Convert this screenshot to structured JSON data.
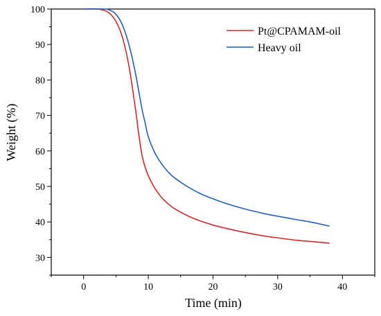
{
  "chart_data": {
    "type": "line",
    "xlabel": "Time (min)",
    "ylabel": "Weight (%)",
    "xlim": [
      -5,
      45
    ],
    "ylim": [
      25,
      100
    ],
    "x_ticks": [
      0,
      10,
      20,
      30,
      40
    ],
    "y_ticks": [
      30,
      40,
      50,
      60,
      70,
      80,
      90,
      100
    ],
    "grid": false,
    "legend_position": "top-right",
    "series": [
      {
        "name": "Pt@CPAMAM-oil",
        "color": "#d62728",
        "x": [
          0,
          2,
          3,
          4,
          5,
          6,
          7,
          8,
          8.5,
          9,
          9.5,
          10,
          11,
          12,
          13,
          14,
          16,
          18,
          20,
          22,
          25,
          28,
          30,
          33,
          35,
          38
        ],
        "y": [
          100,
          100,
          99.7,
          98.8,
          96.5,
          92,
          84,
          72,
          65,
          59,
          55.5,
          53,
          49.5,
          47,
          45.2,
          43.8,
          41.8,
          40.3,
          39.1,
          38.2,
          37,
          36,
          35.5,
          34.8,
          34.5,
          34
        ]
      },
      {
        "name": "Heavy oil",
        "color": "#1f5fbf",
        "x": [
          0,
          3,
          4,
          5,
          6,
          7,
          8,
          9,
          9.5,
          10,
          11,
          12,
          13,
          14,
          16,
          18,
          20,
          22,
          25,
          28,
          30,
          33,
          35,
          38
        ],
        "y": [
          100,
          100,
          99.7,
          98.5,
          95.5,
          90,
          82,
          72,
          68,
          64,
          59.5,
          56.5,
          54.2,
          52.5,
          50,
          48,
          46.5,
          45.2,
          43.6,
          42.3,
          41.6,
          40.6,
          40,
          38.8
        ]
      }
    ]
  }
}
